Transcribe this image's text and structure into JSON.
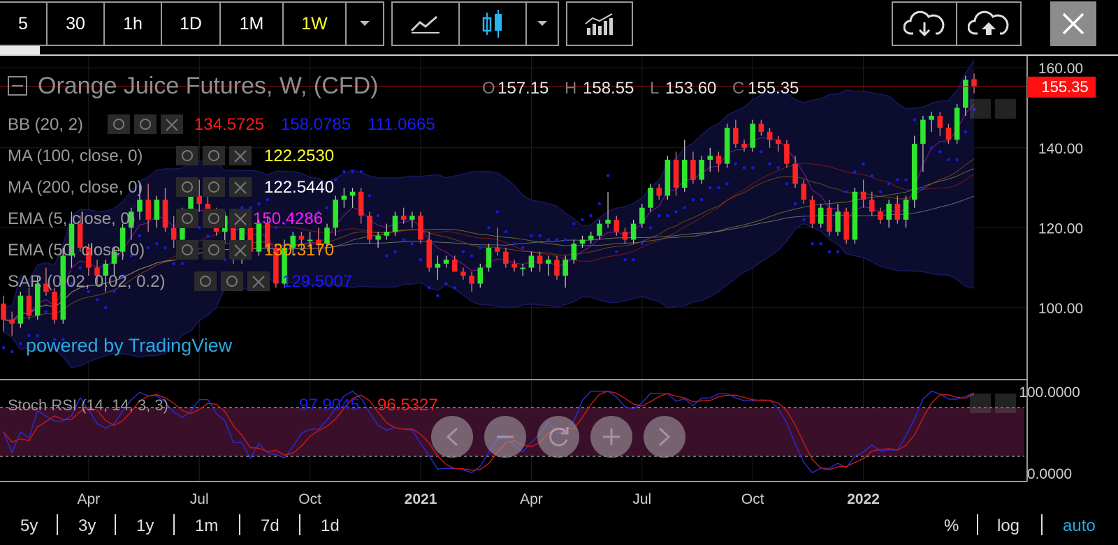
{
  "toolbar": {
    "intervals": [
      "5",
      "30",
      "1h",
      "1D",
      "1M",
      "1W"
    ],
    "selected_interval": "1W",
    "icons": [
      "chevron-down-icon",
      "line-chart-icon",
      "candlestick-icon",
      "chevron-down-icon",
      "indicators-icon",
      "cloud-download-icon",
      "cloud-upload-icon",
      "close-icon"
    ]
  },
  "legend": {
    "title": "Orange Juice Futures, W, (CFD)",
    "ohlc": {
      "O": "157.15",
      "H": "158.55",
      "L": "153.60",
      "C": "155.35"
    },
    "indicators": [
      {
        "name": "BB (20, 2)",
        "values": [
          "134.5725",
          "158.0785",
          "111.0665"
        ],
        "colors": [
          "#ff1a1a",
          "#1a1aff",
          "#1a1aff"
        ]
      },
      {
        "name": "MA (100, close, 0)",
        "values": [
          "122.2530"
        ],
        "colors": [
          "#ffff33"
        ]
      },
      {
        "name": "MA (200, close, 0)",
        "values": [
          "122.5440"
        ],
        "colors": [
          "#ffffff"
        ]
      },
      {
        "name": "EMA (5, close, 0)",
        "values": [
          "150.4286"
        ],
        "colors": [
          "#ff1aff"
        ]
      },
      {
        "name": "EMA (50, close, 0)",
        "values": [
          "130.3170"
        ],
        "colors": [
          "#ff9900"
        ]
      },
      {
        "name": "SAR (0.02, 0.02, 0.2)",
        "values": [
          "129.5007"
        ],
        "colors": [
          "#1a1aff"
        ]
      }
    ],
    "watermark": "powered by TradingView"
  },
  "oscillator": {
    "name": "Stoch RSI (14, 14, 3, 3)",
    "values": [
      "97.9045",
      "96.5327"
    ],
    "colors": [
      "#1a1aff",
      "#ff1a1a"
    ],
    "yticks": [
      "100.0000",
      "0.0000"
    ]
  },
  "price_label": "155.35",
  "range_buttons": [
    "5y",
    "3y",
    "1y",
    "1m",
    "7d",
    "1d"
  ],
  "scale_buttons": [
    "%",
    "log",
    "auto"
  ],
  "chart_data": {
    "type": "candlestick",
    "title": "Orange Juice Futures, W, (CFD)",
    "ylim": [
      82,
      163
    ],
    "yticks": [
      100,
      120,
      140,
      160
    ],
    "xticks": [
      "Apr",
      "Jul",
      "Oct",
      "2021",
      "Apr",
      "Jul",
      "Oct",
      "2022"
    ],
    "last_price": 155.35,
    "candles": [
      {
        "o": 101,
        "h": 103,
        "l": 94,
        "c": 97
      },
      {
        "o": 97,
        "h": 99,
        "l": 93,
        "c": 96
      },
      {
        "o": 96,
        "h": 104,
        "l": 95,
        "c": 103
      },
      {
        "o": 103,
        "h": 105,
        "l": 97,
        "c": 98
      },
      {
        "o": 98,
        "h": 108,
        "l": 97,
        "c": 106
      },
      {
        "o": 106,
        "h": 110,
        "l": 103,
        "c": 104
      },
      {
        "o": 104,
        "h": 105,
        "l": 96,
        "c": 97
      },
      {
        "o": 97,
        "h": 115,
        "l": 96,
        "c": 113
      },
      {
        "o": 113,
        "h": 124,
        "l": 110,
        "c": 121
      },
      {
        "o": 121,
        "h": 123,
        "l": 114,
        "c": 115
      },
      {
        "o": 115,
        "h": 116,
        "l": 108,
        "c": 110
      },
      {
        "o": 110,
        "h": 112,
        "l": 106,
        "c": 108
      },
      {
        "o": 108,
        "h": 112,
        "l": 104,
        "c": 111
      },
      {
        "o": 111,
        "h": 115,
        "l": 108,
        "c": 114
      },
      {
        "o": 114,
        "h": 121,
        "l": 112,
        "c": 120
      },
      {
        "o": 120,
        "h": 125,
        "l": 117,
        "c": 124
      },
      {
        "o": 124,
        "h": 131,
        "l": 122,
        "c": 127
      },
      {
        "o": 127,
        "h": 131,
        "l": 119,
        "c": 122
      },
      {
        "o": 122,
        "h": 128,
        "l": 120,
        "c": 127
      },
      {
        "o": 127,
        "h": 130,
        "l": 119,
        "c": 120
      },
      {
        "o": 120,
        "h": 123,
        "l": 115,
        "c": 117
      },
      {
        "o": 117,
        "h": 125,
        "l": 115,
        "c": 123
      },
      {
        "o": 123,
        "h": 129,
        "l": 120,
        "c": 128
      },
      {
        "o": 128,
        "h": 132,
        "l": 124,
        "c": 126
      },
      {
        "o": 126,
        "h": 128,
        "l": 122,
        "c": 124
      },
      {
        "o": 124,
        "h": 125,
        "l": 118,
        "c": 119
      },
      {
        "o": 119,
        "h": 124,
        "l": 116,
        "c": 123
      },
      {
        "o": 123,
        "h": 124,
        "l": 111,
        "c": 113
      },
      {
        "o": 113,
        "h": 121,
        "l": 111,
        "c": 120
      },
      {
        "o": 120,
        "h": 121,
        "l": 113,
        "c": 114
      },
      {
        "o": 114,
        "h": 122,
        "l": 113,
        "c": 121
      },
      {
        "o": 121,
        "h": 123,
        "l": 114,
        "c": 115
      },
      {
        "o": 115,
        "h": 116,
        "l": 105,
        "c": 106
      },
      {
        "o": 106,
        "h": 117,
        "l": 105,
        "c": 115
      },
      {
        "o": 115,
        "h": 119,
        "l": 113,
        "c": 118
      },
      {
        "o": 118,
        "h": 119,
        "l": 115,
        "c": 117
      },
      {
        "o": 117,
        "h": 119,
        "l": 115,
        "c": 117
      },
      {
        "o": 117,
        "h": 120,
        "l": 114,
        "c": 116
      },
      {
        "o": 116,
        "h": 121,
        "l": 115,
        "c": 120
      },
      {
        "o": 120,
        "h": 128,
        "l": 118,
        "c": 127
      },
      {
        "o": 127,
        "h": 130,
        "l": 125,
        "c": 128
      },
      {
        "o": 128,
        "h": 130,
        "l": 125,
        "c": 129
      },
      {
        "o": 129,
        "h": 130,
        "l": 121,
        "c": 123
      },
      {
        "o": 123,
        "h": 124,
        "l": 116,
        "c": 117
      },
      {
        "o": 117,
        "h": 119,
        "l": 115,
        "c": 118
      },
      {
        "o": 118,
        "h": 121,
        "l": 117,
        "c": 119
      },
      {
        "o": 119,
        "h": 124,
        "l": 118,
        "c": 123
      },
      {
        "o": 123,
        "h": 125,
        "l": 121,
        "c": 122
      },
      {
        "o": 122,
        "h": 124,
        "l": 120,
        "c": 123
      },
      {
        "o": 123,
        "h": 124,
        "l": 116,
        "c": 117
      },
      {
        "o": 117,
        "h": 119,
        "l": 109,
        "c": 110
      },
      {
        "o": 110,
        "h": 113,
        "l": 107,
        "c": 111
      },
      {
        "o": 111,
        "h": 113,
        "l": 110,
        "c": 112
      },
      {
        "o": 112,
        "h": 113,
        "l": 109,
        "c": 109
      },
      {
        "o": 109,
        "h": 110,
        "l": 107,
        "c": 108
      },
      {
        "o": 108,
        "h": 109,
        "l": 104,
        "c": 106
      },
      {
        "o": 106,
        "h": 111,
        "l": 105,
        "c": 110
      },
      {
        "o": 110,
        "h": 116,
        "l": 109,
        "c": 115
      },
      {
        "o": 115,
        "h": 120,
        "l": 113,
        "c": 114
      },
      {
        "o": 114,
        "h": 115,
        "l": 110,
        "c": 111
      },
      {
        "o": 111,
        "h": 112,
        "l": 109,
        "c": 110
      },
      {
        "o": 110,
        "h": 111,
        "l": 108,
        "c": 110
      },
      {
        "o": 110,
        "h": 114,
        "l": 109,
        "c": 113
      },
      {
        "o": 113,
        "h": 114,
        "l": 109,
        "c": 111
      },
      {
        "o": 111,
        "h": 113,
        "l": 108,
        "c": 112
      },
      {
        "o": 112,
        "h": 113,
        "l": 107,
        "c": 108
      },
      {
        "o": 108,
        "h": 113,
        "l": 105,
        "c": 112
      },
      {
        "o": 112,
        "h": 117,
        "l": 111,
        "c": 116
      },
      {
        "o": 116,
        "h": 118,
        "l": 115,
        "c": 117
      },
      {
        "o": 117,
        "h": 119,
        "l": 116,
        "c": 118
      },
      {
        "o": 118,
        "h": 122,
        "l": 117,
        "c": 121
      },
      {
        "o": 121,
        "h": 129,
        "l": 120,
        "c": 122
      },
      {
        "o": 122,
        "h": 123,
        "l": 118,
        "c": 119
      },
      {
        "o": 119,
        "h": 120,
        "l": 116,
        "c": 117
      },
      {
        "o": 117,
        "h": 122,
        "l": 116,
        "c": 121
      },
      {
        "o": 121,
        "h": 126,
        "l": 120,
        "c": 125
      },
      {
        "o": 125,
        "h": 131,
        "l": 124,
        "c": 130
      },
      {
        "o": 130,
        "h": 131,
        "l": 127,
        "c": 128
      },
      {
        "o": 128,
        "h": 138,
        "l": 127,
        "c": 137
      },
      {
        "o": 137,
        "h": 139,
        "l": 128,
        "c": 130
      },
      {
        "o": 130,
        "h": 142,
        "l": 129,
        "c": 137
      },
      {
        "o": 137,
        "h": 139,
        "l": 131,
        "c": 132
      },
      {
        "o": 132,
        "h": 138,
        "l": 131,
        "c": 137
      },
      {
        "o": 137,
        "h": 140,
        "l": 134,
        "c": 138
      },
      {
        "o": 138,
        "h": 139,
        "l": 134,
        "c": 136
      },
      {
        "o": 136,
        "h": 146,
        "l": 135,
        "c": 145
      },
      {
        "o": 145,
        "h": 147,
        "l": 140,
        "c": 141
      },
      {
        "o": 141,
        "h": 142,
        "l": 139,
        "c": 140
      },
      {
        "o": 140,
        "h": 147,
        "l": 139,
        "c": 146
      },
      {
        "o": 146,
        "h": 147,
        "l": 143,
        "c": 144
      },
      {
        "o": 144,
        "h": 145,
        "l": 140,
        "c": 142
      },
      {
        "o": 142,
        "h": 143,
        "l": 139,
        "c": 141
      },
      {
        "o": 141,
        "h": 142,
        "l": 135,
        "c": 136
      },
      {
        "o": 136,
        "h": 138,
        "l": 130,
        "c": 131
      },
      {
        "o": 131,
        "h": 132,
        "l": 126,
        "c": 127
      },
      {
        "o": 127,
        "h": 128,
        "l": 120,
        "c": 121
      },
      {
        "o": 121,
        "h": 126,
        "l": 120,
        "c": 125
      },
      {
        "o": 125,
        "h": 127,
        "l": 118,
        "c": 119
      },
      {
        "o": 119,
        "h": 126,
        "l": 118,
        "c": 124
      },
      {
        "o": 124,
        "h": 125,
        "l": 116,
        "c": 117
      },
      {
        "o": 117,
        "h": 130,
        "l": 116,
        "c": 129
      },
      {
        "o": 129,
        "h": 132,
        "l": 125,
        "c": 127
      },
      {
        "o": 127,
        "h": 129,
        "l": 123,
        "c": 124
      },
      {
        "o": 124,
        "h": 125,
        "l": 121,
        "c": 122
      },
      {
        "o": 122,
        "h": 127,
        "l": 120,
        "c": 126
      },
      {
        "o": 126,
        "h": 128,
        "l": 121,
        "c": 122
      },
      {
        "o": 122,
        "h": 128,
        "l": 120,
        "c": 127
      },
      {
        "o": 127,
        "h": 143,
        "l": 125,
        "c": 141
      },
      {
        "o": 141,
        "h": 148,
        "l": 134,
        "c": 147
      },
      {
        "o": 147,
        "h": 149,
        "l": 144,
        "c": 148
      },
      {
        "o": 148,
        "h": 149,
        "l": 143,
        "c": 145
      },
      {
        "o": 145,
        "h": 146,
        "l": 141,
        "c": 142
      },
      {
        "o": 142,
        "h": 151,
        "l": 141,
        "c": 150
      },
      {
        "o": 150,
        "h": 158,
        "l": 148,
        "c": 157
      },
      {
        "o": 157.15,
        "h": 158.55,
        "l": 153.6,
        "c": 155.35
      }
    ],
    "stoch_rsi": {
      "k_last": 97.9045,
      "d_last": 96.5327,
      "ylim": [
        0,
        100
      ],
      "bands": [
        80,
        20
      ]
    }
  }
}
